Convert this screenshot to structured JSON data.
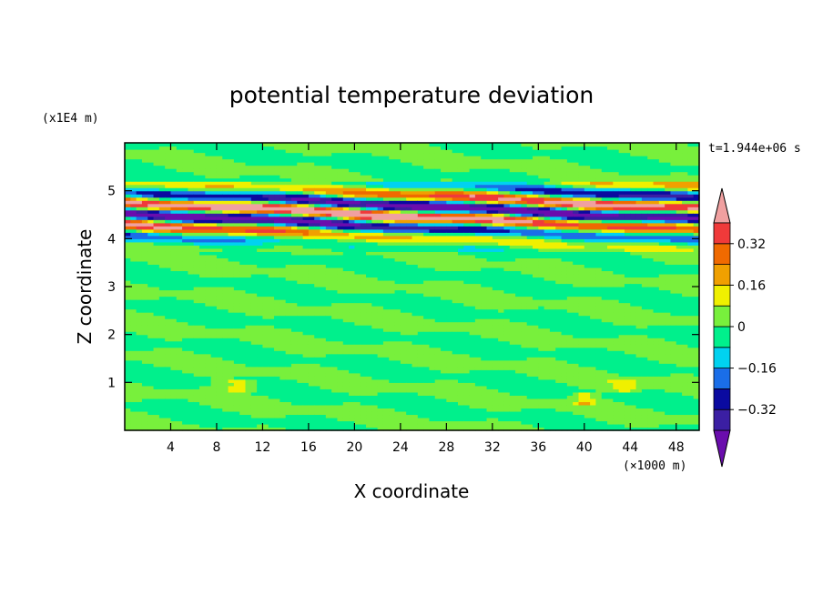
{
  "chart_data": {
    "type": "heatmap",
    "title": "potential temperature deviation",
    "xlabel": "X coordinate",
    "ylabel": "Z coordinate",
    "x_unit": "(×1000 m)",
    "y_unit": "(x1E4 m)",
    "time_label": "t=1.944e+06 s",
    "xlim": [
      0,
      50
    ],
    "ylim": [
      0,
      6
    ],
    "x_ticks": [
      4,
      8,
      12,
      16,
      20,
      24,
      28,
      32,
      36,
      40,
      44,
      48
    ],
    "y_ticks": [
      1,
      2,
      3,
      4,
      5
    ],
    "colorbar": {
      "levels": [
        -0.48,
        -0.4,
        -0.32,
        -0.24,
        -0.16,
        -0.08,
        0,
        0.08,
        0.16,
        0.24,
        0.32,
        0.4,
        0.48
      ],
      "labels": [
        "0.32",
        "0.16",
        "0",
        "−0.16",
        "−0.32"
      ],
      "label_values": [
        0.32,
        0.16,
        0,
        -0.16,
        -0.32
      ],
      "colors": [
        "#6a0dad",
        "#3b1fa3",
        "#0a0aa0",
        "#1a6ee8",
        "#00d2f0",
        "#00f08c",
        "#78f03c",
        "#f0f000",
        "#f0a000",
        "#f06a00",
        "#f03a3a",
        "#f0a0a0"
      ],
      "extend": "both"
    },
    "field_description_bands": [
      {
        "z": 0.5,
        "amp": 0.05
      },
      {
        "z": 1.0,
        "amp": 0.15
      },
      {
        "z": 4.0,
        "amp": 0.45
      },
      {
        "z": 4.5,
        "amp": 0.45
      },
      {
        "z": 5.0,
        "amp": 0.4
      }
    ]
  }
}
